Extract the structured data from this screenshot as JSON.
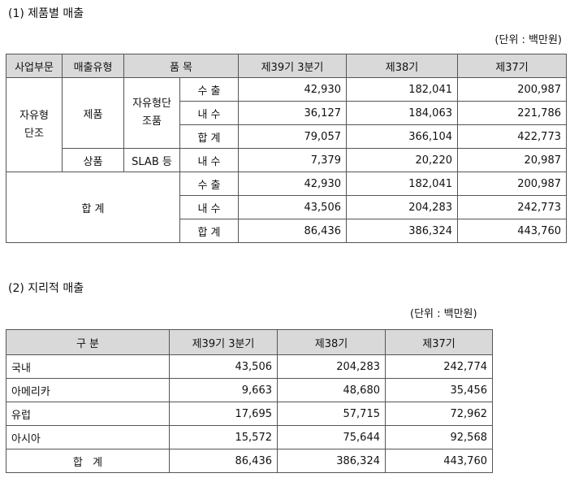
{
  "section1": {
    "title": "(1) 제품별 매출",
    "unit": "(단위 : 백만원)",
    "headers": [
      "사업부문",
      "매출유형",
      "품 목",
      "제39기 3분기",
      "제38기",
      "제37기"
    ],
    "business": "자유형\n단조",
    "type_product": "제품",
    "item_product": "자유형단\n조품",
    "type_goods": "상품",
    "item_goods": "SLAB 등",
    "total_label": "합 계",
    "rows": [
      {
        "sub": "수 출",
        "v": [
          "42,930",
          "182,041",
          "200,987"
        ]
      },
      {
        "sub": "내 수",
        "v": [
          "36,127",
          "184,063",
          "221,786"
        ]
      },
      {
        "sub": "합 계",
        "v": [
          "79,057",
          "366,104",
          "422,773"
        ]
      },
      {
        "sub": "내 수",
        "v": [
          "7,379",
          "20,220",
          "20,987"
        ]
      },
      {
        "sub": "수 출",
        "v": [
          "42,930",
          "182,041",
          "200,987"
        ]
      },
      {
        "sub": "내 수",
        "v": [
          "43,506",
          "204,283",
          "242,773"
        ]
      },
      {
        "sub": "합 계",
        "v": [
          "86,436",
          "386,324",
          "443,760"
        ]
      }
    ]
  },
  "section2": {
    "title": "(2) 지리적 매출",
    "unit": "(단위 : 백만원)",
    "headers": [
      "구   분",
      "제39기 3분기",
      "제38기",
      "제37기"
    ],
    "rows": [
      {
        "label": "국내",
        "v": [
          "43,506",
          "204,283",
          "242,774"
        ]
      },
      {
        "label": "아메리카",
        "v": [
          "9,663",
          "48,680",
          "35,456"
        ]
      },
      {
        "label": "유럽",
        "v": [
          "17,695",
          "57,715",
          "72,962"
        ]
      },
      {
        "label": "아시아",
        "v": [
          "15,572",
          "75,644",
          "92,568"
        ]
      }
    ],
    "total": {
      "label": "합   계",
      "v": [
        "86,436",
        "386,324",
        "443,760"
      ]
    }
  }
}
